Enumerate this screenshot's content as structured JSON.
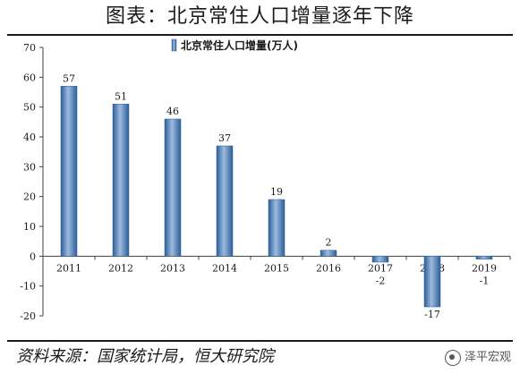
{
  "figure": {
    "title": "图表：北京常住人口增量逐年下降",
    "source": "资料来源：国家统计局，恒大研究院",
    "watermark": "泽平宏观"
  },
  "colors": {
    "bar": "#4f81bd",
    "bar_light": "#9dbbe0",
    "bar_dark": "#2e5e97"
  },
  "chart_data": {
    "type": "bar",
    "categories": [
      "2011",
      "2012",
      "2013",
      "2014",
      "2015",
      "2016",
      "2017",
      "2018",
      "2019"
    ],
    "series": [
      {
        "name": "北京常住人口增量(万人)",
        "values": [
          57,
          51,
          46,
          37,
          19,
          2,
          -2,
          -17,
          -1
        ]
      }
    ],
    "data_labels": [
      "57",
      "51",
      "46",
      "37",
      "19",
      "2",
      "-2",
      "-17",
      "-1"
    ],
    "ylim": [
      -20,
      70
    ],
    "yticks": [
      -20,
      -10,
      0,
      10,
      20,
      30,
      40,
      50,
      60,
      70
    ],
    "xlabel": "",
    "ylabel": "",
    "grid": false,
    "legend_position": "top-center"
  }
}
